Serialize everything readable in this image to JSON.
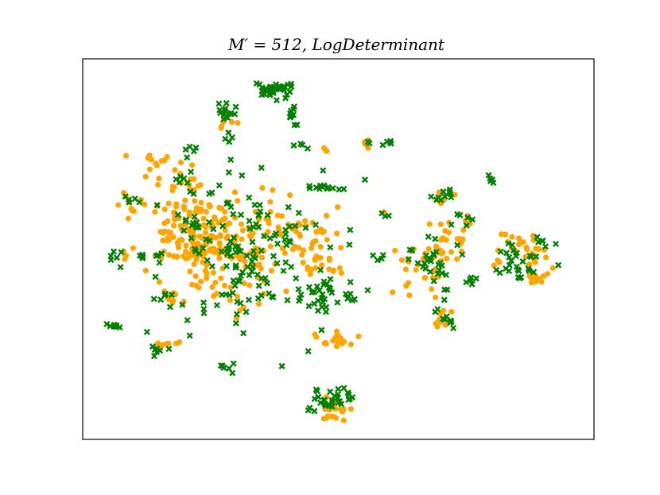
{
  "chart_data": {
    "type": "scatter",
    "title": "M′ = 512, LogDeterminant",
    "xlabel": "",
    "ylabel": "",
    "xlim": [
      0,
      100
    ],
    "ylim": [
      0,
      100
    ],
    "axes_ticks": "none",
    "grid": false,
    "legend": "none",
    "colors": {
      "orange": "#FFA500",
      "green": "#007F00"
    },
    "series": [
      {
        "marker": "circle",
        "color": "#FFA500",
        "clusters": [
          {
            "cx": 22,
            "cy": 54,
            "sx": 5.0,
            "sy": 4.5,
            "n": 160
          },
          {
            "cx": 28,
            "cy": 46,
            "sx": 6.0,
            "sy": 6.0,
            "n": 70
          },
          {
            "cx": 40,
            "cy": 55,
            "sx": 4.5,
            "sy": 4.0,
            "n": 55
          },
          {
            "cx": 46,
            "cy": 47,
            "sx": 3.0,
            "sy": 3.0,
            "n": 25
          },
          {
            "cx": 15,
            "cy": 72,
            "sx": 2.5,
            "sy": 1.5,
            "n": 14
          },
          {
            "cx": 9,
            "cy": 62,
            "sx": 1.5,
            "sy": 1.5,
            "n": 8
          },
          {
            "cx": 20,
            "cy": 67,
            "sx": 3.0,
            "sy": 2.0,
            "n": 14
          },
          {
            "cx": 17,
            "cy": 37,
            "sx": 1.5,
            "sy": 1.5,
            "n": 10
          },
          {
            "cx": 16,
            "cy": 25,
            "sx": 1.0,
            "sy": 1.0,
            "n": 8
          },
          {
            "cx": 49,
            "cy": 8,
            "sx": 2.0,
            "sy": 1.5,
            "n": 22
          },
          {
            "cx": 50,
            "cy": 26,
            "sx": 2.5,
            "sy": 1.5,
            "n": 18
          },
          {
            "cx": 70,
            "cy": 63,
            "sx": 1.2,
            "sy": 1.0,
            "n": 10
          },
          {
            "cx": 67,
            "cy": 47,
            "sx": 3.0,
            "sy": 4.0,
            "n": 35
          },
          {
            "cx": 73,
            "cy": 52,
            "sx": 2.0,
            "sy": 3.0,
            "n": 20
          },
          {
            "cx": 71,
            "cy": 32,
            "sx": 1.2,
            "sy": 1.5,
            "n": 10
          },
          {
            "cx": 86,
            "cy": 50,
            "sx": 2.5,
            "sy": 2.5,
            "n": 30
          },
          {
            "cx": 89,
            "cy": 43,
            "sx": 1.5,
            "sy": 1.0,
            "n": 12
          },
          {
            "cx": 8,
            "cy": 48,
            "sx": 1.0,
            "sy": 1.0,
            "n": 3
          },
          {
            "cx": 48,
            "cy": 76,
            "sx": 1.0,
            "sy": 0.8,
            "n": 3
          },
          {
            "cx": 55,
            "cy": 78,
            "sx": 0.6,
            "sy": 0.8,
            "n": 4
          },
          {
            "cx": 58,
            "cy": 59,
            "sx": 0.6,
            "sy": 0.6,
            "n": 2
          },
          {
            "cx": 28,
            "cy": 83,
            "sx": 1.0,
            "sy": 1.0,
            "n": 6
          }
        ]
      },
      {
        "marker": "x",
        "color": "#007F00",
        "clusters": [
          {
            "cx": 37,
            "cy": 92,
            "sx": 2.0,
            "sy": 1.2,
            "n": 35
          },
          {
            "cx": 28,
            "cy": 86,
            "sx": 1.2,
            "sy": 1.2,
            "n": 14
          },
          {
            "cx": 41,
            "cy": 85,
            "sx": 0.6,
            "sy": 2.5,
            "n": 10
          },
          {
            "cx": 29,
            "cy": 79,
            "sx": 0.5,
            "sy": 1.0,
            "n": 4
          },
          {
            "cx": 42,
            "cy": 77,
            "sx": 0.8,
            "sy": 0.5,
            "n": 4
          },
          {
            "cx": 33,
            "cy": 48,
            "sx": 9.0,
            "sy": 10.0,
            "n": 150
          },
          {
            "cx": 47,
            "cy": 38,
            "sx": 3.0,
            "sy": 2.5,
            "n": 30
          },
          {
            "cx": 46,
            "cy": 66,
            "sx": 1.5,
            "sy": 0.5,
            "n": 10
          },
          {
            "cx": 6,
            "cy": 48,
            "sx": 0.6,
            "sy": 1.2,
            "n": 6
          },
          {
            "cx": 6,
            "cy": 30,
            "sx": 0.8,
            "sy": 0.6,
            "n": 8
          },
          {
            "cx": 15,
            "cy": 23,
            "sx": 0.8,
            "sy": 0.6,
            "n": 5
          },
          {
            "cx": 12,
            "cy": 48,
            "sx": 1.5,
            "sy": 0.6,
            "n": 8
          },
          {
            "cx": 28,
            "cy": 19,
            "sx": 1.0,
            "sy": 1.5,
            "n": 6
          },
          {
            "cx": 49,
            "cy": 10,
            "sx": 2.0,
            "sy": 2.0,
            "n": 20
          },
          {
            "cx": 70,
            "cy": 64,
            "sx": 1.2,
            "sy": 0.8,
            "n": 10
          },
          {
            "cx": 68,
            "cy": 47,
            "sx": 3.0,
            "sy": 3.5,
            "n": 30
          },
          {
            "cx": 71,
            "cy": 32,
            "sx": 1.2,
            "sy": 1.5,
            "n": 10
          },
          {
            "cx": 80,
            "cy": 68,
            "sx": 0.6,
            "sy": 0.5,
            "n": 6
          },
          {
            "cx": 85,
            "cy": 46,
            "sx": 2.5,
            "sy": 2.5,
            "n": 22
          },
          {
            "cx": 90,
            "cy": 52,
            "sx": 1.2,
            "sy": 1.0,
            "n": 6
          },
          {
            "cx": 9,
            "cy": 63,
            "sx": 1.0,
            "sy": 1.0,
            "n": 5
          },
          {
            "cx": 60,
            "cy": 78,
            "sx": 0.6,
            "sy": 0.6,
            "n": 5
          },
          {
            "cx": 56,
            "cy": 78,
            "sx": 0.5,
            "sy": 0.5,
            "n": 2
          },
          {
            "cx": 50,
            "cy": 66,
            "sx": 0.8,
            "sy": 0.5,
            "n": 3
          },
          {
            "cx": 59,
            "cy": 59,
            "sx": 0.6,
            "sy": 0.6,
            "n": 3
          },
          {
            "cx": 19,
            "cy": 68,
            "sx": 1.2,
            "sy": 1.0,
            "n": 6
          },
          {
            "cx": 22,
            "cy": 76,
            "sx": 1.0,
            "sy": 0.6,
            "n": 4
          },
          {
            "cx": 49,
            "cy": 12,
            "sx": 2.5,
            "sy": 1.8,
            "n": 12
          },
          {
            "cx": 83,
            "cy": 50,
            "sx": 1.5,
            "sy": 1.5,
            "n": 6
          },
          {
            "cx": 75,
            "cy": 58,
            "sx": 1.2,
            "sy": 1.0,
            "n": 6
          },
          {
            "cx": 76,
            "cy": 42,
            "sx": 1.0,
            "sy": 1.0,
            "n": 5
          },
          {
            "cx": 58,
            "cy": 47,
            "sx": 1.5,
            "sy": 0.5,
            "n": 4
          },
          {
            "cx": 21,
            "cy": 56,
            "sx": 1.5,
            "sy": 2.0,
            "n": 6
          },
          {
            "cx": 16,
            "cy": 37,
            "sx": 1.0,
            "sy": 1.5,
            "n": 5
          }
        ]
      }
    ]
  }
}
